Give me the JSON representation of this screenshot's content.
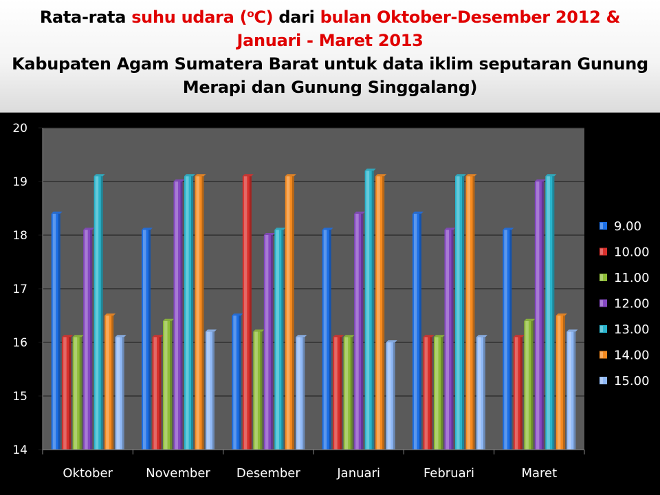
{
  "title": {
    "line1_a": "Rata-rata ",
    "line1_b": "suhu udara (",
    "line1_sup": "o",
    "line1_c": "C)",
    "line1_d": " dari ",
    "line1_e": "bulan Oktober-Desember 2012 &",
    "line2": "Januari - Maret 2013",
    "line3": "Kabupaten Agam Sumatera Barat untuk data iklim seputaran Gunung",
    "line4": "Merapi dan Gunung Singgalang)"
  },
  "colors": {
    "title_red": "#e00000",
    "plot_background": "#5a5a5a",
    "page_background": "#000000"
  },
  "chart_data": {
    "type": "bar",
    "categories": [
      "Oktober",
      "November",
      "Desember",
      "Januari",
      "Februari",
      "Maret"
    ],
    "ylim": [
      14,
      20
    ],
    "yticks": [
      14,
      15,
      16,
      17,
      18,
      19,
      20
    ],
    "grid": true,
    "legend_position": "right",
    "series": [
      {
        "name": "9.00",
        "color": "#1c6fe6",
        "values": [
          18.4,
          18.1,
          16.5,
          18.1,
          18.4,
          18.1
        ]
      },
      {
        "name": "10.00",
        "color": "#d9302c",
        "values": [
          16.1,
          16.1,
          19.1,
          16.1,
          16.1,
          16.1
        ]
      },
      {
        "name": "11.00",
        "color": "#8fbd38",
        "values": [
          16.1,
          16.4,
          16.2,
          16.1,
          16.1,
          16.4
        ]
      },
      {
        "name": "12.00",
        "color": "#8548c2",
        "values": [
          18.1,
          19.0,
          18.0,
          18.4,
          18.1,
          19.0
        ]
      },
      {
        "name": "13.00",
        "color": "#2ab4cc",
        "values": [
          19.1,
          19.1,
          18.1,
          19.2,
          19.1,
          19.1
        ]
      },
      {
        "name": "14.00",
        "color": "#f58a1f",
        "values": [
          16.5,
          19.1,
          19.1,
          19.1,
          19.1,
          16.5
        ]
      },
      {
        "name": "15.00",
        "color": "#8fb8f5",
        "values": [
          16.1,
          16.2,
          16.1,
          16.0,
          16.1,
          16.2
        ]
      }
    ]
  }
}
